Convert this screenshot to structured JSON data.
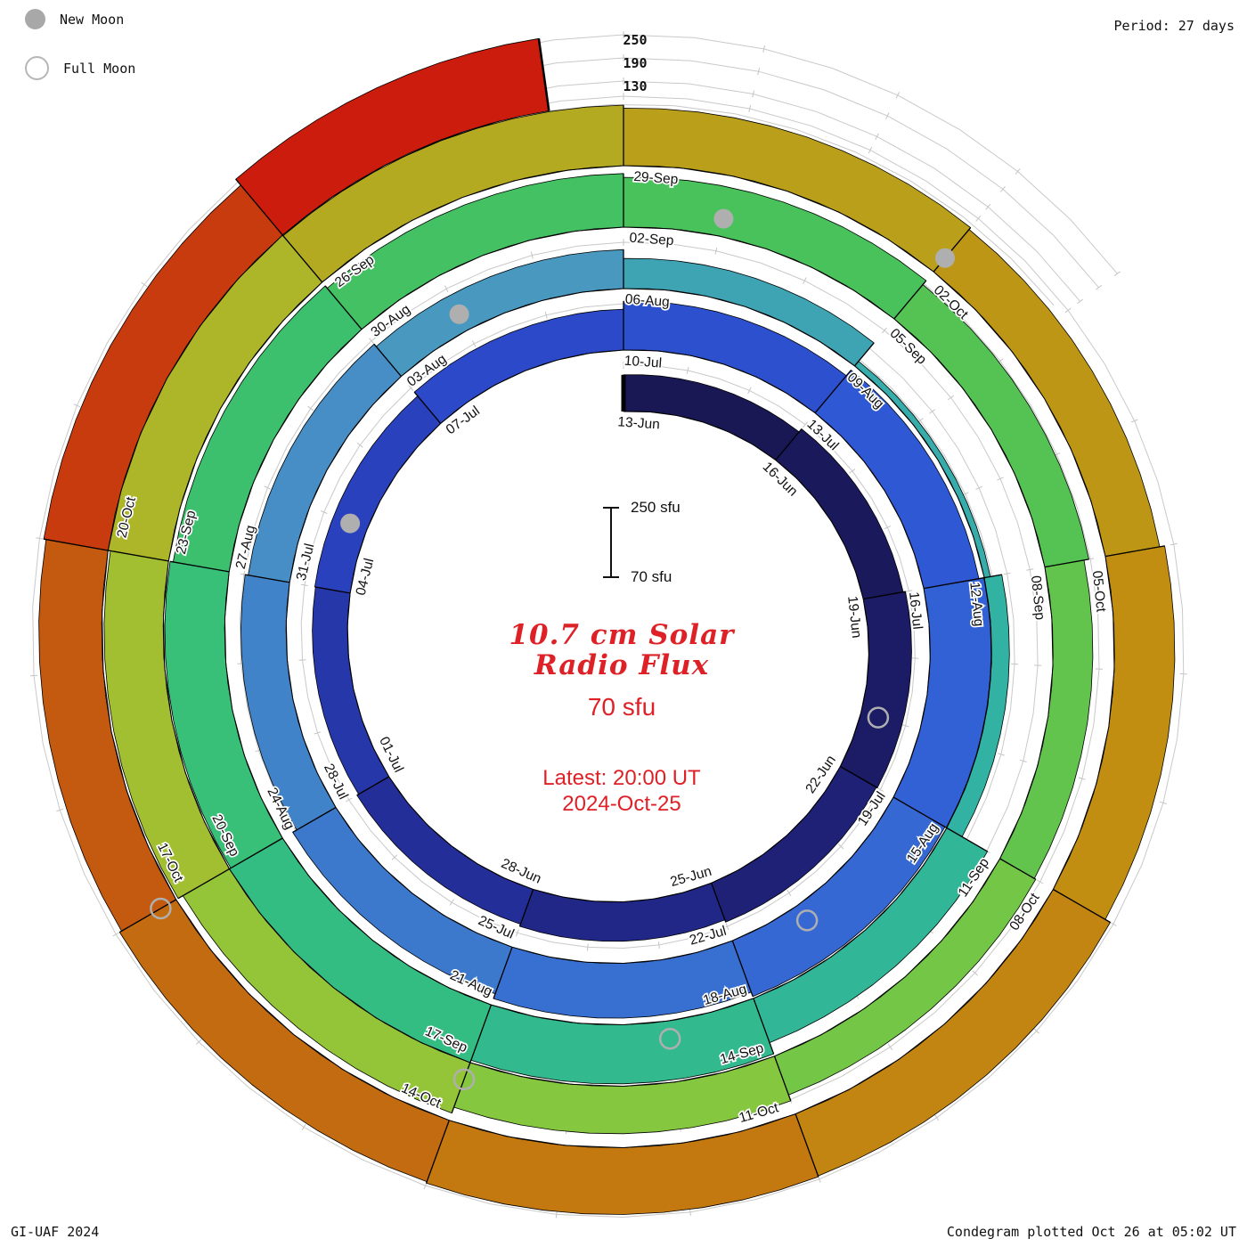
{
  "legend": {
    "new_moon": "New Moon",
    "full_moon": "Full Moon"
  },
  "period_label": "Period: 27 days",
  "credit": "GI-UAF 2024",
  "footer": "Condegram plotted Oct 26 at 05:02 UT",
  "axis_labels": [
    "250",
    "190",
    "130"
  ],
  "center": {
    "title_line1": "10.7 cm Solar",
    "title_line2": "Radio Flux",
    "baseline_label": "70 sfu",
    "latest_line1": "Latest: 20:00 UT",
    "latest_line2": "2024-Oct-25",
    "scalebar_top": "250 sfu",
    "scalebar_bottom": "70 sfu"
  },
  "colors": {
    "annotation_red": "#de2127",
    "text_black": "#111111",
    "grid_gray": "#c9c9c9",
    "tick_gray": "#c4c4c4",
    "moon_gray": "#afafaf",
    "outline_black": "#000000"
  },
  "chart_data": {
    "type": "spiral_bar_condegram",
    "title": "10.7 cm Solar Radio Flux",
    "start_date": "2024-06-13",
    "end_date": "2024-10-25",
    "period_days": 27,
    "baseline_sfu": 70,
    "radial_ticks_sfu": [
      130,
      190,
      250
    ],
    "segments_3day": [
      {
        "label": "13-Jun",
        "day": 0,
        "sfu": 165
      },
      {
        "label": "16-Jun",
        "day": 3,
        "sfu": 175
      },
      {
        "label": "19-Jun",
        "day": 6,
        "sfu": 181
      },
      {
        "label": "22-Jun",
        "day": 9,
        "sfu": 178
      },
      {
        "label": "25-Jun",
        "day": 12,
        "sfu": 172
      },
      {
        "label": "28-Jun",
        "day": 15,
        "sfu": 166
      },
      {
        "label": "01-Jul",
        "day": 18,
        "sfu": 161
      },
      {
        "label": "04-Jul",
        "day": 21,
        "sfu": 163
      },
      {
        "label": "07-Jul",
        "day": 24,
        "sfu": 176
      },
      {
        "label": "10-Jul",
        "day": 27,
        "sfu": 196
      },
      {
        "label": "13-Jul",
        "day": 30,
        "sfu": 215
      },
      {
        "label": "16-Jul",
        "day": 33,
        "sfu": 228
      },
      {
        "label": "19-Jul",
        "day": 36,
        "sfu": 224
      },
      {
        "label": "22-Jul",
        "day": 39,
        "sfu": 212
      },
      {
        "label": "25-Jul",
        "day": 42,
        "sfu": 199
      },
      {
        "label": "28-Jul",
        "day": 45,
        "sfu": 187
      },
      {
        "label": "31-Jul",
        "day": 48,
        "sfu": 179
      },
      {
        "label": "03-Aug",
        "day": 51,
        "sfu": 171
      },
      {
        "label": "06-Aug",
        "day": 54,
        "sfu": 148
      },
      {
        "label": "09-Aug",
        "day": 57,
        "sfu": 86
      },
      {
        "label": "12-Aug",
        "day": 60,
        "sfu": 116
      },
      {
        "label": "15-Aug",
        "day": 63,
        "sfu": 192
      },
      {
        "label": "18-Aug",
        "day": 66,
        "sfu": 223
      },
      {
        "label": "21-Aug",
        "day": 69,
        "sfu": 231
      },
      {
        "label": "24-Aug",
        "day": 72,
        "sfu": 225
      },
      {
        "label": "27-Aug",
        "day": 75,
        "sfu": 217
      },
      {
        "label": "30-Aug",
        "day": 78,
        "sfu": 209
      },
      {
        "label": "02-Sep",
        "day": 81,
        "sfu": 199
      },
      {
        "label": "05-Sep",
        "day": 84,
        "sfu": 186
      },
      {
        "label": "08-Sep",
        "day": 87,
        "sfu": 173
      },
      {
        "label": "11-Sep",
        "day": 90,
        "sfu": 177
      },
      {
        "label": "14-Sep",
        "day": 93,
        "sfu": 193
      },
      {
        "label": "17-Sep",
        "day": 96,
        "sfu": 209
      },
      {
        "label": "20-Sep",
        "day": 99,
        "sfu": 223
      },
      {
        "label": "23-Sep",
        "day": 102,
        "sfu": 231
      },
      {
        "label": "26-Sep",
        "day": 105,
        "sfu": 227
      },
      {
        "label": "29-Sep",
        "day": 108,
        "sfu": 219
      },
      {
        "label": "02-Oct",
        "day": 111,
        "sfu": 213
      },
      {
        "label": "05-Oct",
        "day": 114,
        "sfu": 226
      },
      {
        "label": "08-Oct",
        "day": 117,
        "sfu": 241
      },
      {
        "label": "11-Oct",
        "day": 120,
        "sfu": 243
      },
      {
        "label": "14-Oct",
        "day": 123,
        "sfu": 239
      },
      {
        "label": "17-Oct",
        "day": 126,
        "sfu": 233
      },
      {
        "label": "20-Oct",
        "day": 129,
        "sfu": 239
      },
      {
        "label": "",
        "day": 132,
        "sfu": 259
      }
    ],
    "moons": {
      "new": [
        {
          "day": 22
        },
        {
          "day": 52
        },
        {
          "day": 82
        },
        {
          "day": 111
        }
      ],
      "full": [
        {
          "day": 8
        },
        {
          "day": 38
        },
        {
          "day": 67
        },
        {
          "day": 96
        },
        {
          "day": 126
        }
      ]
    },
    "colormap": [
      {
        "day": 0,
        "color": "#18174f"
      },
      {
        "day": 8,
        "color": "#1c1b66"
      },
      {
        "day": 16,
        "color": "#232c94"
      },
      {
        "day": 24,
        "color": "#2a45c4"
      },
      {
        "day": 32,
        "color": "#2f59d6"
      },
      {
        "day": 40,
        "color": "#376ed2"
      },
      {
        "day": 46,
        "color": "#4081ca"
      },
      {
        "day": 52,
        "color": "#4a96c2"
      },
      {
        "day": 57,
        "color": "#3aa9ae"
      },
      {
        "day": 63,
        "color": "#30b59e"
      },
      {
        "day": 70,
        "color": "#33bd85"
      },
      {
        "day": 78,
        "color": "#3fc168"
      },
      {
        "day": 84,
        "color": "#4dc257"
      },
      {
        "day": 90,
        "color": "#69c549"
      },
      {
        "day": 96,
        "color": "#8dc83c"
      },
      {
        "day": 102,
        "color": "#a9bc2d"
      },
      {
        "day": 108,
        "color": "#b7a41e"
      },
      {
        "day": 113,
        "color": "#bf9514"
      },
      {
        "day": 118,
        "color": "#c28811"
      },
      {
        "day": 123,
        "color": "#c37310"
      },
      {
        "day": 127,
        "color": "#c45e10"
      },
      {
        "day": 130,
        "color": "#c6430f"
      },
      {
        "day": 132,
        "color": "#c9270f"
      },
      {
        "day": 135,
        "color": "#cc120e"
      }
    ]
  }
}
